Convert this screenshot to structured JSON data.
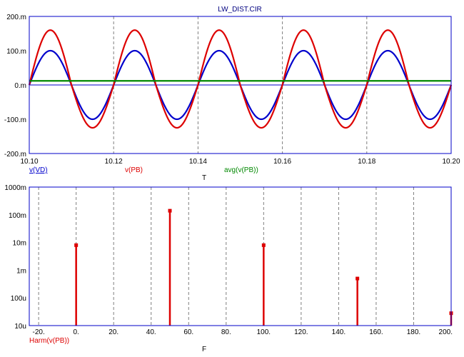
{
  "colors": {
    "frame": "#0000c8",
    "grid": "#7f7f7f",
    "blue_trace": "#0000cc",
    "red_trace": "#dd0000",
    "green_trace": "#008800",
    "axis_text": "#000000",
    "title_text": "#00007f"
  },
  "chart_data": [
    {
      "type": "line",
      "title": "LW_DIST.CIR",
      "xlabel": "T",
      "xlim": [
        10.1,
        10.2
      ],
      "ylim": [
        -0.2,
        0.2
      ],
      "x_ticks": [
        {
          "value": 10.1,
          "label": "10.10"
        },
        {
          "value": 10.12,
          "label": "10.12"
        },
        {
          "value": 10.14,
          "label": "10.14"
        },
        {
          "value": 10.16,
          "label": "10.16"
        },
        {
          "value": 10.18,
          "label": "10.18"
        },
        {
          "value": 10.2,
          "label": "10.20"
        }
      ],
      "y_ticks": [
        {
          "value": 0.2,
          "label": "200.m"
        },
        {
          "value": 0.1,
          "label": "100.m"
        },
        {
          "value": 0.0,
          "label": "0.m"
        },
        {
          "value": -0.1,
          "label": "-100.m"
        },
        {
          "value": -0.2,
          "label": "-200.m"
        }
      ],
      "grid": "vertical dashed",
      "series": [
        {
          "name": "v(VD)",
          "color": "#0000cc",
          "kind": "sine",
          "amplitude": 0.1,
          "offset": 0.0,
          "period": 0.02,
          "phase_zero_at": 10.1
        },
        {
          "name": "v(PB)",
          "color": "#dd0000",
          "kind": "distorted-sine",
          "amplitude": 0.1,
          "offset": 0.0,
          "period": 0.02,
          "phase_zero_at": 10.1,
          "positive_peak": 0.16,
          "negative_peak": -0.125
        },
        {
          "name": "avg(v(PB))",
          "color": "#008800",
          "kind": "constant",
          "value": 0.012
        }
      ]
    },
    {
      "type": "bar",
      "subtype": "stem",
      "xlabel": "F",
      "xlim": [
        -25,
        200
      ],
      "ylog": true,
      "ylim": [
        1e-05,
        1.0
      ],
      "x_ticks": [
        {
          "value": -20,
          "label": "-20."
        },
        {
          "value": 0,
          "label": "0."
        },
        {
          "value": 20,
          "label": "20."
        },
        {
          "value": 40,
          "label": "40."
        },
        {
          "value": 60,
          "label": "60."
        },
        {
          "value": 80,
          "label": "80."
        },
        {
          "value": 100,
          "label": "100."
        },
        {
          "value": 120,
          "label": "120."
        },
        {
          "value": 140,
          "label": "140."
        },
        {
          "value": 160,
          "label": "160."
        },
        {
          "value": 180,
          "label": "180."
        },
        {
          "value": 200,
          "label": "200."
        }
      ],
      "y_ticks": [
        {
          "value": 1.0,
          "label": "1000m"
        },
        {
          "value": 0.1,
          "label": "100m"
        },
        {
          "value": 0.01,
          "label": "10m"
        },
        {
          "value": 0.001,
          "label": "1m"
        },
        {
          "value": 0.0001,
          "label": "100u"
        },
        {
          "value": 1e-05,
          "label": "10u"
        }
      ],
      "grid": "vertical dashed",
      "series": [
        {
          "name": "Harm(v(PB))",
          "color": "#dd0000",
          "x": [
            0,
            50,
            100,
            150,
            200
          ],
          "values": [
            0.008,
            0.14,
            0.008,
            0.0005,
            2.8e-05
          ]
        }
      ]
    }
  ]
}
